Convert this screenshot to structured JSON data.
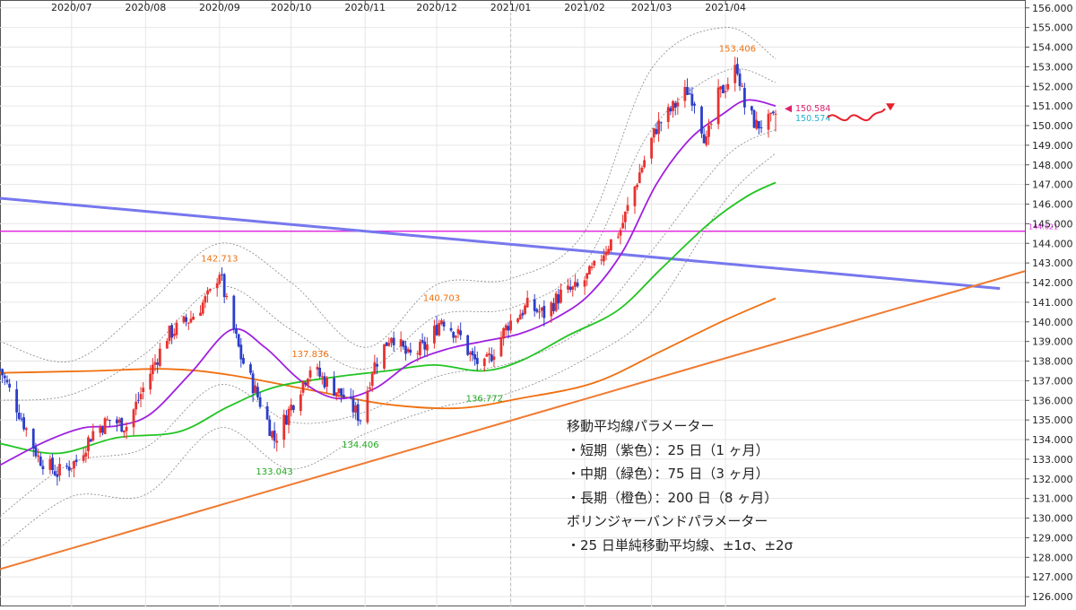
{
  "chart_data": {
    "type": "candlestick",
    "symbol_context": "price chart with moving averages and Bollinger bands",
    "x_month_labels": [
      "2020/07",
      "2020/08",
      "2020/09",
      "2020/10",
      "2020/11",
      "2020/12",
      "2021/01",
      "2021/02",
      "2021/03",
      "2021/04"
    ],
    "y_tick_labels": [
      "156.000",
      "155.000",
      "154.000",
      "153.000",
      "152.000",
      "151.000",
      "150.000",
      "149.000",
      "148.000",
      "147.000",
      "146.000",
      "145.000",
      "144.000",
      "143.000",
      "142.000",
      "141.000",
      "140.000",
      "139.000",
      "138.000",
      "137.000",
      "136.000",
      "135.000",
      "134.000",
      "133.000",
      "132.000",
      "131.000",
      "130.000",
      "129.000",
      "128.000",
      "127.000",
      "126.000"
    ],
    "ylim": [
      125.5,
      156.4
    ],
    "date_range": [
      "2020-06-01",
      "2021-04-22"
    ],
    "grid": true,
    "colors": {
      "up_candle": "#e8322f",
      "down_candle": "#2b3ec9",
      "sma25": "#a020e0",
      "sma75": "#22c422",
      "sma200": "#f07010",
      "bands": "#888888",
      "downtrend_line": "#7777ee",
      "uptrend_line": "#f07a30",
      "horizontal_line": "#e030e0",
      "high_label": "#f07010",
      "low_label": "#1fa81f",
      "current_price_a": "#e0206a",
      "current_price_b": "#22b0d0",
      "forecast_arrow": "#e8202a"
    },
    "ohlc_anchors": [
      {
        "date": "2020-06-01",
        "close": 137.6
      },
      {
        "date": "2020-06-09",
        "close": 135.4
      },
      {
        "date": "2020-06-17",
        "close": 133.1
      },
      {
        "date": "2020-06-25",
        "close": 132.3
      },
      {
        "date": "2020-07-03",
        "close": 132.9
      },
      {
        "date": "2020-07-10",
        "close": 134.4
      },
      {
        "date": "2020-07-17",
        "close": 135.0
      },
      {
        "date": "2020-07-24",
        "close": 134.7
      },
      {
        "date": "2020-07-31",
        "close": 136.6
      },
      {
        "date": "2020-08-10",
        "close": 139.3
      },
      {
        "date": "2020-08-20",
        "close": 140.2
      },
      {
        "date": "2020-08-28",
        "close": 141.4
      },
      {
        "date": "2020-09-01",
        "close": 142.6
      },
      {
        "date": "2020-09-04",
        "close": 140.9
      },
      {
        "date": "2020-09-10",
        "close": 138.2
      },
      {
        "date": "2020-09-18",
        "close": 135.9
      },
      {
        "date": "2020-09-24",
        "close": 134.0
      },
      {
        "date": "2020-09-29",
        "close": 135.2
      },
      {
        "date": "2020-10-09",
        "close": 137.7
      },
      {
        "date": "2020-10-16",
        "close": 136.9
      },
      {
        "date": "2020-10-23",
        "close": 136.2
      },
      {
        "date": "2020-10-30",
        "close": 135.1
      },
      {
        "date": "2020-11-04",
        "close": 137.6
      },
      {
        "date": "2020-11-12",
        "close": 139.4
      },
      {
        "date": "2020-11-19",
        "close": 138.2
      },
      {
        "date": "2020-11-27",
        "close": 138.8
      },
      {
        "date": "2020-12-03",
        "close": 140.2
      },
      {
        "date": "2020-12-11",
        "close": 139.2
      },
      {
        "date": "2020-12-16",
        "close": 138.1
      },
      {
        "date": "2020-12-21",
        "close": 137.7
      },
      {
        "date": "2020-12-31",
        "close": 139.9
      },
      {
        "date": "2021-01-08",
        "close": 140.8
      },
      {
        "date": "2021-01-15",
        "close": 140.4
      },
      {
        "date": "2021-01-22",
        "close": 141.4
      },
      {
        "date": "2021-01-29",
        "close": 141.7
      },
      {
        "date": "2021-02-05",
        "close": 142.7
      },
      {
        "date": "2021-02-10",
        "close": 143.8
      },
      {
        "date": "2021-02-16",
        "close": 144.7
      },
      {
        "date": "2021-02-24",
        "close": 147.6
      },
      {
        "date": "2021-03-03",
        "close": 149.9
      },
      {
        "date": "2021-03-10",
        "close": 150.9
      },
      {
        "date": "2021-03-16",
        "close": 151.8
      },
      {
        "date": "2021-03-19",
        "close": 151.3
      },
      {
        "date": "2021-03-24",
        "close": 149.1
      },
      {
        "date": "2021-03-29",
        "close": 151.5
      },
      {
        "date": "2021-04-06",
        "close": 153.0
      },
      {
        "date": "2021-04-09",
        "close": 151.0
      },
      {
        "date": "2021-04-14",
        "close": 150.0
      },
      {
        "date": "2021-04-22",
        "close": 150.3
      }
    ],
    "sma25": [
      {
        "date": "2020-06-01",
        "value": 132.7
      },
      {
        "date": "2020-06-20",
        "value": 133.9
      },
      {
        "date": "2020-07-06",
        "value": 134.6
      },
      {
        "date": "2020-07-20",
        "value": 134.7
      },
      {
        "date": "2020-08-03",
        "value": 135.3
      },
      {
        "date": "2020-08-20",
        "value": 137.4
      },
      {
        "date": "2020-09-06",
        "value": 139.6
      },
      {
        "date": "2020-09-20",
        "value": 138.7
      },
      {
        "date": "2020-10-05",
        "value": 137.0
      },
      {
        "date": "2020-10-20",
        "value": 136.1
      },
      {
        "date": "2020-11-05",
        "value": 136.6
      },
      {
        "date": "2020-11-20",
        "value": 137.9
      },
      {
        "date": "2020-12-05",
        "value": 138.6
      },
      {
        "date": "2020-12-20",
        "value": 139.0
      },
      {
        "date": "2021-01-05",
        "value": 139.4
      },
      {
        "date": "2021-01-20",
        "value": 140.2
      },
      {
        "date": "2021-02-03",
        "value": 141.4
      },
      {
        "date": "2021-02-17",
        "value": 143.6
      },
      {
        "date": "2021-03-03",
        "value": 147.0
      },
      {
        "date": "2021-03-17",
        "value": 149.3
      },
      {
        "date": "2021-03-31",
        "value": 150.6
      },
      {
        "date": "2021-04-10",
        "value": 151.3
      },
      {
        "date": "2021-04-22",
        "value": 151.0
      }
    ],
    "sma75": [
      {
        "date": "2020-06-01",
        "value": 133.8
      },
      {
        "date": "2020-06-25",
        "value": 133.3
      },
      {
        "date": "2020-07-20",
        "value": 134.1
      },
      {
        "date": "2020-08-15",
        "value": 134.4
      },
      {
        "date": "2020-09-05",
        "value": 135.7
      },
      {
        "date": "2020-09-25",
        "value": 136.7
      },
      {
        "date": "2020-10-20",
        "value": 137.2
      },
      {
        "date": "2020-11-10",
        "value": 137.5
      },
      {
        "date": "2020-11-30",
        "value": 137.8
      },
      {
        "date": "2020-12-20",
        "value": 137.5
      },
      {
        "date": "2021-01-05",
        "value": 138.0
      },
      {
        "date": "2021-01-25",
        "value": 139.3
      },
      {
        "date": "2021-02-15",
        "value": 140.6
      },
      {
        "date": "2021-03-05",
        "value": 142.7
      },
      {
        "date": "2021-03-25",
        "value": 145.0
      },
      {
        "date": "2021-04-10",
        "value": 146.4
      },
      {
        "date": "2021-04-22",
        "value": 147.1
      }
    ],
    "sma200": [
      {
        "date": "2020-06-01",
        "value": 137.4
      },
      {
        "date": "2020-07-10",
        "value": 137.5
      },
      {
        "date": "2020-08-10",
        "value": 137.6
      },
      {
        "date": "2020-09-05",
        "value": 137.3
      },
      {
        "date": "2020-10-10",
        "value": 136.5
      },
      {
        "date": "2020-11-10",
        "value": 135.8
      },
      {
        "date": "2020-12-10",
        "value": 135.6
      },
      {
        "date": "2021-01-05",
        "value": 136.1
      },
      {
        "date": "2021-02-05",
        "value": 136.9
      },
      {
        "date": "2021-03-05",
        "value": 138.5
      },
      {
        "date": "2021-04-01",
        "value": 140.1
      },
      {
        "date": "2021-04-22",
        "value": 141.2
      }
    ],
    "bollinger_1sigma_upper": [
      {
        "date": "2020-06-01",
        "value": 136.0
      },
      {
        "date": "2020-07-01",
        "value": 136.3
      },
      {
        "date": "2020-08-01",
        "value": 138.4
      },
      {
        "date": "2020-09-01",
        "value": 141.8
      },
      {
        "date": "2020-10-01",
        "value": 139.6
      },
      {
        "date": "2020-11-01",
        "value": 137.6
      },
      {
        "date": "2020-12-01",
        "value": 140.3
      },
      {
        "date": "2021-01-01",
        "value": 140.7
      },
      {
        "date": "2021-02-01",
        "value": 143.0
      },
      {
        "date": "2021-03-01",
        "value": 149.8
      },
      {
        "date": "2021-04-01",
        "value": 152.8
      },
      {
        "date": "2021-04-22",
        "value": 152.2
      }
    ],
    "bollinger_1sigma_lower": [
      {
        "date": "2020-06-01",
        "value": 130.1
      },
      {
        "date": "2020-07-01",
        "value": 132.8
      },
      {
        "date": "2020-08-01",
        "value": 133.6
      },
      {
        "date": "2020-09-01",
        "value": 136.8
      },
      {
        "date": "2020-10-01",
        "value": 134.9
      },
      {
        "date": "2020-11-01",
        "value": 135.4
      },
      {
        "date": "2020-12-01",
        "value": 137.2
      },
      {
        "date": "2021-01-01",
        "value": 137.9
      },
      {
        "date": "2021-02-01",
        "value": 139.7
      },
      {
        "date": "2021-03-01",
        "value": 143.6
      },
      {
        "date": "2021-04-01",
        "value": 148.4
      },
      {
        "date": "2021-04-22",
        "value": 149.8
      }
    ],
    "bollinger_2sigma_upper": [
      {
        "date": "2020-06-01",
        "value": 139.0
      },
      {
        "date": "2020-07-01",
        "value": 138.0
      },
      {
        "date": "2020-08-01",
        "value": 140.8
      },
      {
        "date": "2020-09-01",
        "value": 144.0
      },
      {
        "date": "2020-10-01",
        "value": 142.0
      },
      {
        "date": "2020-11-01",
        "value": 138.7
      },
      {
        "date": "2020-12-01",
        "value": 141.9
      },
      {
        "date": "2021-01-01",
        "value": 142.2
      },
      {
        "date": "2021-02-01",
        "value": 144.6
      },
      {
        "date": "2021-03-01",
        "value": 152.9
      },
      {
        "date": "2021-04-01",
        "value": 155.0
      },
      {
        "date": "2021-04-22",
        "value": 153.4
      }
    ],
    "bollinger_2sigma_lower": [
      {
        "date": "2020-06-01",
        "value": 128.5
      },
      {
        "date": "2020-07-01",
        "value": 131.1
      },
      {
        "date": "2020-08-01",
        "value": 131.2
      },
      {
        "date": "2020-09-01",
        "value": 134.6
      },
      {
        "date": "2020-10-01",
        "value": 132.5
      },
      {
        "date": "2020-11-01",
        "value": 134.3
      },
      {
        "date": "2020-12-01",
        "value": 135.6
      },
      {
        "date": "2021-01-01",
        "value": 136.4
      },
      {
        "date": "2021-02-01",
        "value": 138.1
      },
      {
        "date": "2021-03-01",
        "value": 140.5
      },
      {
        "date": "2021-04-01",
        "value": 146.2
      },
      {
        "date": "2021-04-22",
        "value": 148.6
      }
    ],
    "trendlines": [
      {
        "name": "downtrend",
        "points": [
          {
            "date": "2020-06-01",
            "value": 146.3
          },
          {
            "date": "2021-07-25",
            "value": 141.7
          }
        ]
      },
      {
        "name": "uptrend",
        "points": [
          {
            "date": "2020-06-01",
            "value": 127.4
          },
          {
            "date": "2021-09-05",
            "value": 143.7
          }
        ]
      }
    ],
    "horizontal_line": {
      "value": 144.621,
      "label": "144.621"
    },
    "annotations": [
      {
        "kind": "high",
        "value_label": "142.713",
        "date": "2020-09-01",
        "value": 142.713
      },
      {
        "kind": "low",
        "value_label": "133.043",
        "date": "2020-09-24",
        "value": 133.043
      },
      {
        "kind": "high",
        "value_label": "137.836",
        "date": "2020-10-09",
        "value": 137.836
      },
      {
        "kind": "low",
        "value_label": "134.406",
        "date": "2020-10-30",
        "value": 134.406
      },
      {
        "kind": "high",
        "value_label": "140.703",
        "date": "2020-12-03",
        "value": 140.703
      },
      {
        "kind": "low",
        "value_label": "136.772",
        "date": "2020-12-21",
        "value": 136.772
      },
      {
        "kind": "high",
        "value_label": "153.406",
        "date": "2021-04-06",
        "value": 153.406
      }
    ],
    "current_price_labels": [
      "150.584",
      "150.574"
    ],
    "notes": [
      "移動平均線パラメーター",
      "・短期（紫色）：25 日（1 ヶ月）",
      "・中期（緑色）：75 日（3 ヶ月）",
      "・長期（橙色）：200 日（8 ヶ月）",
      "ボリンジャーバンドパラメーター",
      "・25 日単純移動平均線、±1σ、±2σ"
    ]
  }
}
